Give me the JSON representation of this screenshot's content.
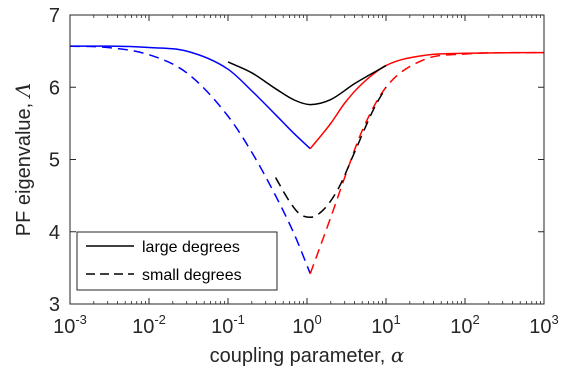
{
  "chart_data": {
    "type": "line",
    "xlabel": "coupling parameter, ",
    "xlabel_symbol": "α",
    "ylabel": "PF eigenvalue, ",
    "ylabel_symbol": "Λ",
    "xscale": "log",
    "xlim": [
      0.001,
      1000
    ],
    "ylim": [
      3,
      7
    ],
    "xticks": [
      {
        "value": 0.001,
        "base": "10",
        "exp": "-3"
      },
      {
        "value": 0.01,
        "base": "10",
        "exp": "-2"
      },
      {
        "value": 0.1,
        "base": "10",
        "exp": "-1"
      },
      {
        "value": 1,
        "base": "10",
        "exp": "0"
      },
      {
        "value": 10,
        "base": "10",
        "exp": "1"
      },
      {
        "value": 100,
        "base": "10",
        "exp": "2"
      },
      {
        "value": 1000,
        "base": "10",
        "exp": "3"
      }
    ],
    "yticks": [
      {
        "value": 3,
        "label": "3"
      },
      {
        "value": 4,
        "label": "4"
      },
      {
        "value": 5,
        "label": "5"
      },
      {
        "value": 6,
        "label": "6"
      },
      {
        "value": 7,
        "label": "7"
      }
    ],
    "grid": false,
    "legend_position": "bottom-left",
    "legend": [
      {
        "label": "large degrees",
        "style": "solid",
        "color": "#000000"
      },
      {
        "label": "small degrees",
        "style": "dashed",
        "color": "#000000"
      }
    ],
    "series": [
      {
        "style": "solid",
        "color": "#0000ff",
        "x": [
          0.001,
          0.003,
          0.01,
          0.03,
          0.1,
          0.2,
          0.4,
          0.7,
          1.1
        ],
        "y": [
          6.57,
          6.57,
          6.55,
          6.5,
          6.25,
          5.95,
          5.62,
          5.35,
          5.15
        ]
      },
      {
        "style": "solid",
        "color": "#ff0000",
        "x": [
          1.1,
          2,
          3,
          5,
          10,
          30,
          100,
          1000
        ],
        "y": [
          5.15,
          5.5,
          5.78,
          6.05,
          6.3,
          6.44,
          6.47,
          6.48
        ]
      },
      {
        "style": "solid",
        "color": "#000000",
        "x": [
          0.1,
          0.2,
          0.4,
          0.7,
          1.1,
          2,
          4,
          10
        ],
        "y": [
          6.35,
          6.2,
          5.98,
          5.82,
          5.76,
          5.83,
          6.05,
          6.3
        ]
      },
      {
        "style": "dashed",
        "color": "#0000ff",
        "x": [
          0.001,
          0.003,
          0.01,
          0.03,
          0.1,
          0.2,
          0.4,
          0.7,
          1.1
        ],
        "y": [
          6.57,
          6.55,
          6.45,
          6.2,
          5.6,
          5.1,
          4.5,
          3.95,
          3.42
        ]
      },
      {
        "style": "dashed",
        "color": "#ff0000",
        "x": [
          1.1,
          2,
          3,
          5,
          10,
          30,
          100,
          1000
        ],
        "y": [
          3.42,
          4.2,
          4.75,
          5.4,
          6.0,
          6.38,
          6.46,
          6.48
        ]
      },
      {
        "style": "dashed",
        "color": "#000000",
        "x": [
          0.4,
          0.6,
          0.8,
          1.1,
          1.6,
          2.5,
          4,
          7,
          10
        ],
        "y": [
          4.75,
          4.42,
          4.25,
          4.2,
          4.3,
          4.6,
          5.1,
          5.7,
          6.0
        ]
      }
    ]
  }
}
